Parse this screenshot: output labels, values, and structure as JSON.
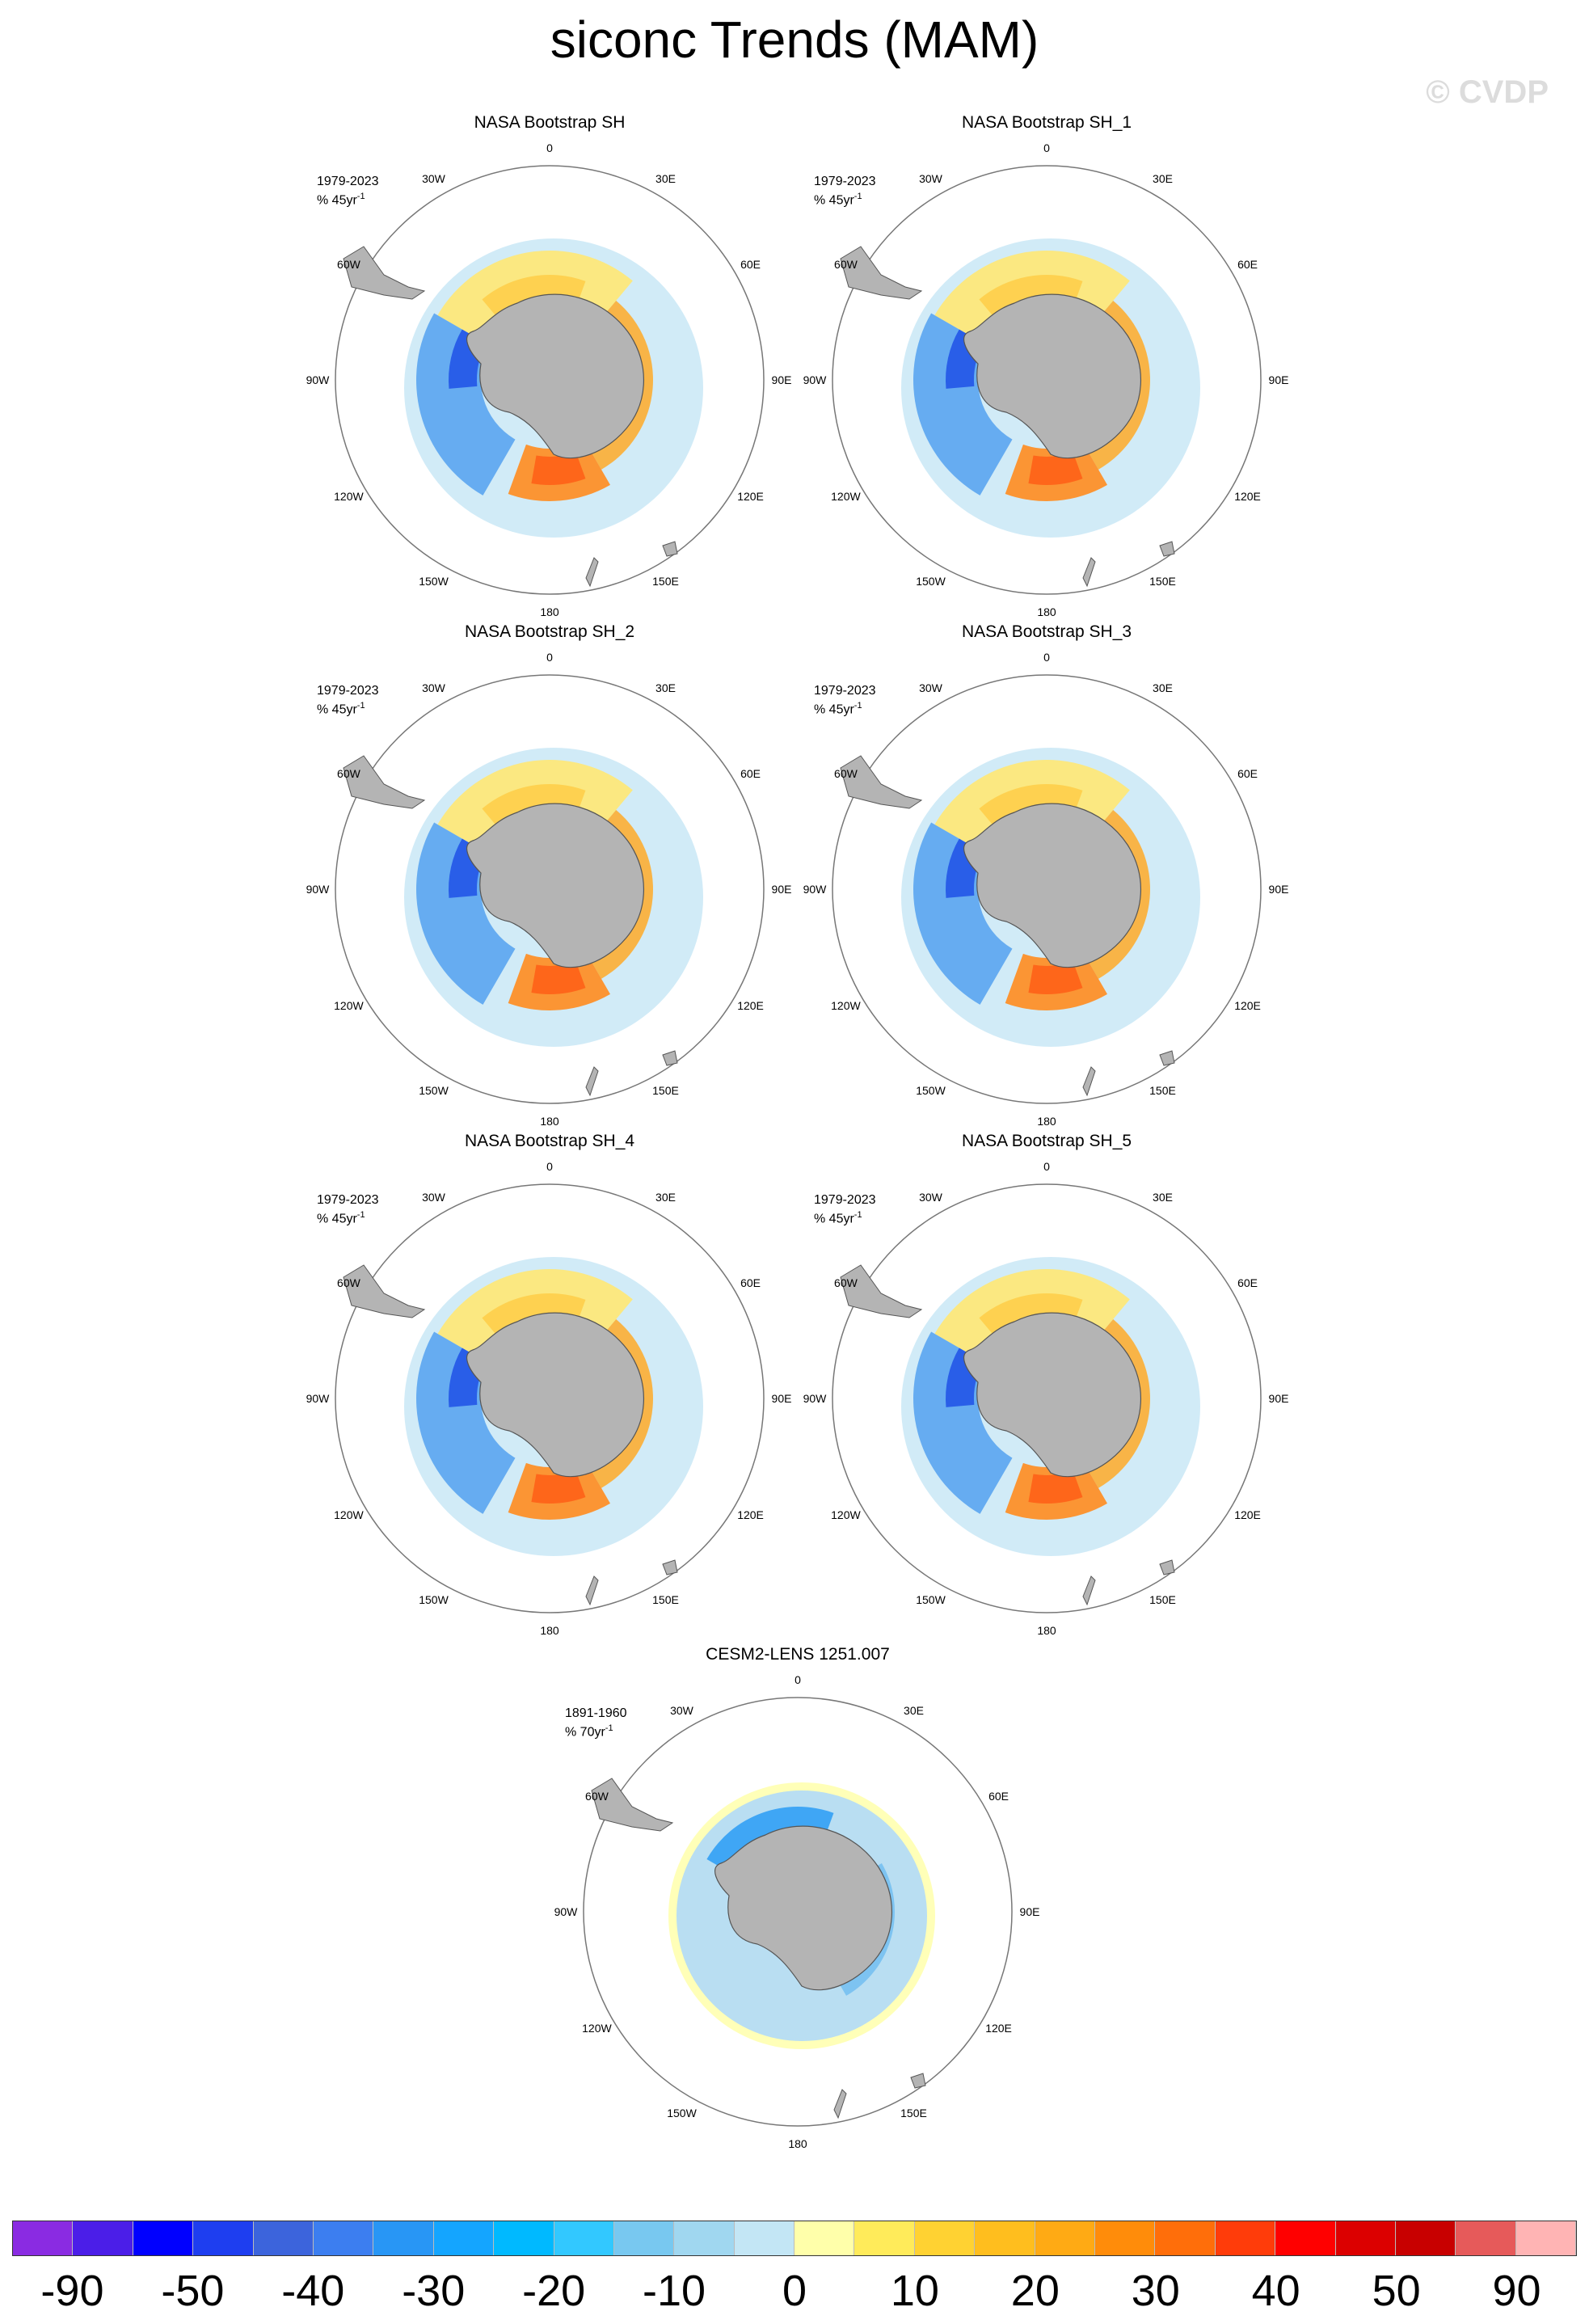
{
  "title": "siconc Trends (MAM)",
  "watermark": "© CVDP",
  "lon_labels": {
    "l0": "0",
    "l30e": "30E",
    "l60e": "60E",
    "l90e": "90E",
    "l120e": "120E",
    "l150e": "150E",
    "l180": "180",
    "l150w": "150W",
    "l120w": "120W",
    "l90w": "90W",
    "l60w": "60W",
    "l30w": "30W"
  },
  "panels": [
    {
      "title": "NASA Bootstrap SH",
      "period": "1979-2023",
      "units": "% 45yr",
      "units_exp": "-1",
      "style": "obs"
    },
    {
      "title": "NASA Bootstrap SH_1",
      "period": "1979-2023",
      "units": "% 45yr",
      "units_exp": "-1",
      "style": "obs"
    },
    {
      "title": "NASA Bootstrap SH_2",
      "period": "1979-2023",
      "units": "% 45yr",
      "units_exp": "-1",
      "style": "obs"
    },
    {
      "title": "NASA Bootstrap SH_3",
      "period": "1979-2023",
      "units": "% 45yr",
      "units_exp": "-1",
      "style": "obs"
    },
    {
      "title": "NASA Bootstrap SH_4",
      "period": "1979-2023",
      "units": "% 45yr",
      "units_exp": "-1",
      "style": "obs"
    },
    {
      "title": "NASA Bootstrap SH_5",
      "period": "1979-2023",
      "units": "% 45yr",
      "units_exp": "-1",
      "style": "obs"
    },
    {
      "title": "CESM2-LENS 1251.007",
      "period": "1891-1960",
      "units": "% 70yr",
      "units_exp": "-1",
      "style": "model"
    }
  ],
  "colorbar": {
    "colors": [
      "#8a2be2",
      "#4b1ee8",
      "#0000ff",
      "#1e3ef0",
      "#3c64dc",
      "#3c7ef0",
      "#2896f5",
      "#14a5ff",
      "#00b9ff",
      "#32c8ff",
      "#78c8f0",
      "#a0d7f0",
      "#c3e6f5",
      "#ffffaa",
      "#ffeb5a",
      "#ffd232",
      "#ffbe1e",
      "#ffaa14",
      "#ff8c0a",
      "#ff6e0a",
      "#ff3c0a",
      "#ff0000",
      "#dc0000",
      "#c80000",
      "#e65a5a",
      "#ffb4b4"
    ],
    "labels": [
      "-90",
      "-50",
      "-40",
      "-30",
      "-20",
      "-10",
      "0",
      "10",
      "20",
      "30",
      "40",
      "50",
      "90"
    ]
  }
}
